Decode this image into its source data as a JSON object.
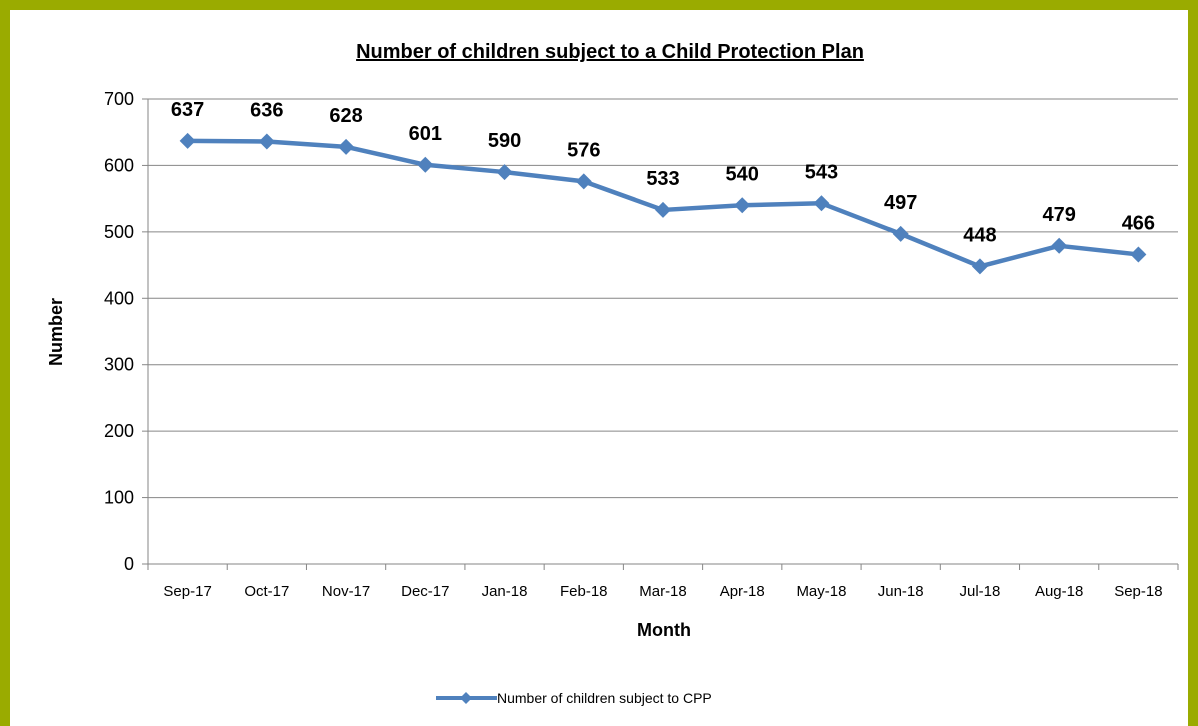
{
  "chart_data": {
    "type": "line",
    "title": "Number of children subject to a Child Protection Plan",
    "xlabel": "Month",
    "ylabel": "Number",
    "categories": [
      "Sep-17",
      "Oct-17",
      "Nov-17",
      "Dec-17",
      "Jan-18",
      "Feb-18",
      "Mar-18",
      "Apr-18",
      "May-18",
      "Jun-18",
      "Jul-18",
      "Aug-18",
      "Sep-18"
    ],
    "series": [
      {
        "name": "Number of children subject to CPP",
        "values": [
          637,
          636,
          628,
          601,
          590,
          576,
          533,
          540,
          543,
          497,
          448,
          479,
          466
        ],
        "color": "#4f81bd",
        "marker": "diamond"
      }
    ],
    "ylim": [
      0,
      700
    ],
    "yticks": [
      0,
      100,
      200,
      300,
      400,
      500,
      600,
      700
    ],
    "grid": true,
    "data_labels": true,
    "legend": "bottom"
  },
  "colors": {
    "border": "#9aab00",
    "series": "#4f81bd",
    "grid": "#868686"
  }
}
